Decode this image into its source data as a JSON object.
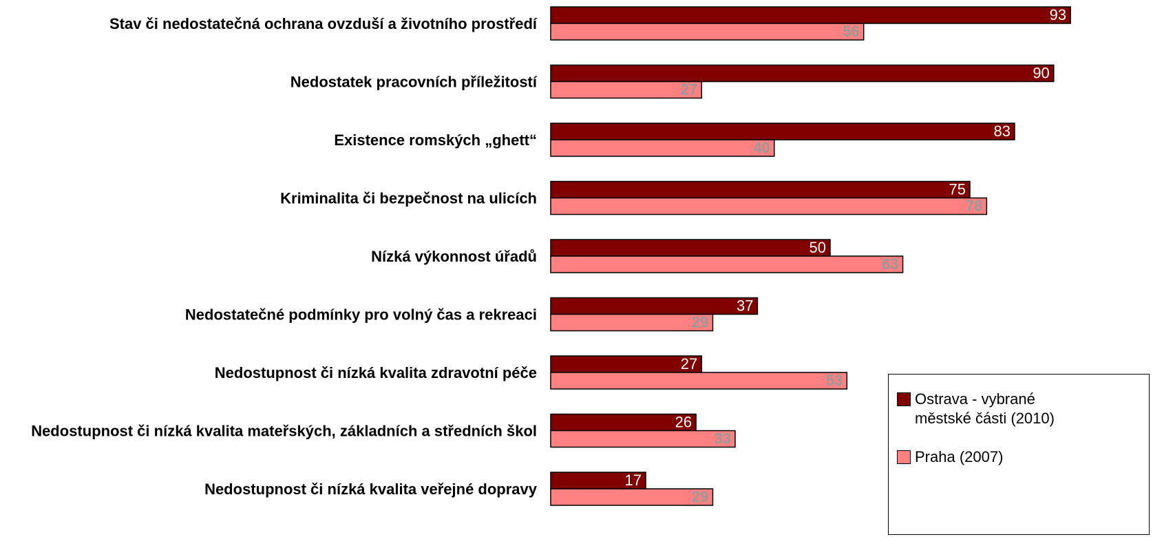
{
  "chart_data": {
    "type": "hbar",
    "categories": [
      "Stav či nedostatečná ochrana ovzduší a životního prostředí",
      "Nedostatek pracovních příležitostí",
      "Existence romských „ghett“",
      "Kriminalita či bezpečnost na ulicích",
      "Nízká výkonnost úřadů",
      "Nedostatečné podmínky pro volný čas a rekreaci",
      "Nedostupnost či nízká kvalita zdravotní péče",
      "Nedostupnost či nízká kvalita mateřských, základních a středních škol",
      "Nedostupnost či nízká kvalita veřejné dopravy"
    ],
    "series": [
      {
        "name": "Ostrava - vybrané městské části (2010)",
        "color": "#800000",
        "values": [
          93,
          90,
          83,
          75,
          50,
          37,
          27,
          26,
          17
        ]
      },
      {
        "name": "Praha (2007)",
        "color": "#ff8080",
        "values": [
          56,
          27,
          40,
          78,
          63,
          29,
          53,
          33,
          29
        ]
      }
    ],
    "xlim": [
      0,
      100
    ]
  }
}
